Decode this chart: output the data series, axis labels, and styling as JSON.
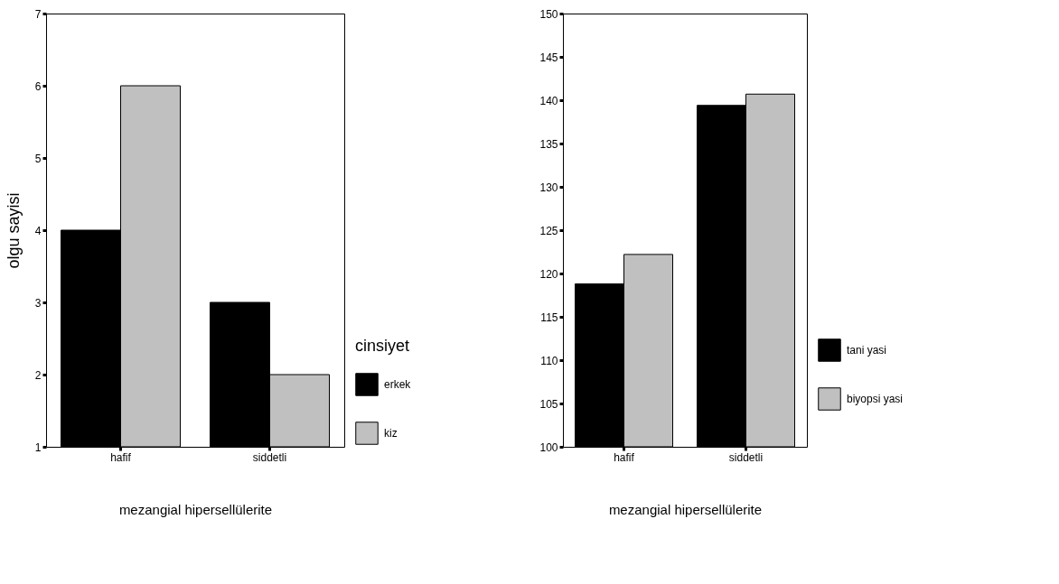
{
  "chart_data": [
    {
      "type": "bar",
      "xlabel": "mezangial hipersellülerite",
      "ylabel": "olgu sayisi",
      "legend_title": "cinsiyet",
      "categories": [
        "hafif",
        "siddetli"
      ],
      "series": [
        {
          "name": "erkek",
          "color": "#000000",
          "values": [
            4,
            3
          ]
        },
        {
          "name": "kiz",
          "color": "#c0c0c0",
          "values": [
            6,
            2
          ]
        }
      ],
      "ylim": [
        1,
        7
      ],
      "yticks": [
        1,
        2,
        3,
        4,
        5,
        6,
        7
      ],
      "grid": false,
      "legend": "right"
    },
    {
      "type": "bar",
      "xlabel": "mezangial hipersellülerite",
      "categories": [
        "hafif",
        "siddetli"
      ],
      "series": [
        {
          "name": "tani yasi",
          "color": "#000000",
          "values": [
            118.8,
            139.4
          ]
        },
        {
          "name": "biyopsi yasi",
          "color": "#c0c0c0",
          "values": [
            122.2,
            140.7
          ]
        }
      ],
      "ylim": [
        100,
        150
      ],
      "yticks": [
        100,
        105,
        110,
        115,
        120,
        125,
        130,
        135,
        140,
        145,
        150
      ],
      "grid": false,
      "legend": "right"
    }
  ]
}
